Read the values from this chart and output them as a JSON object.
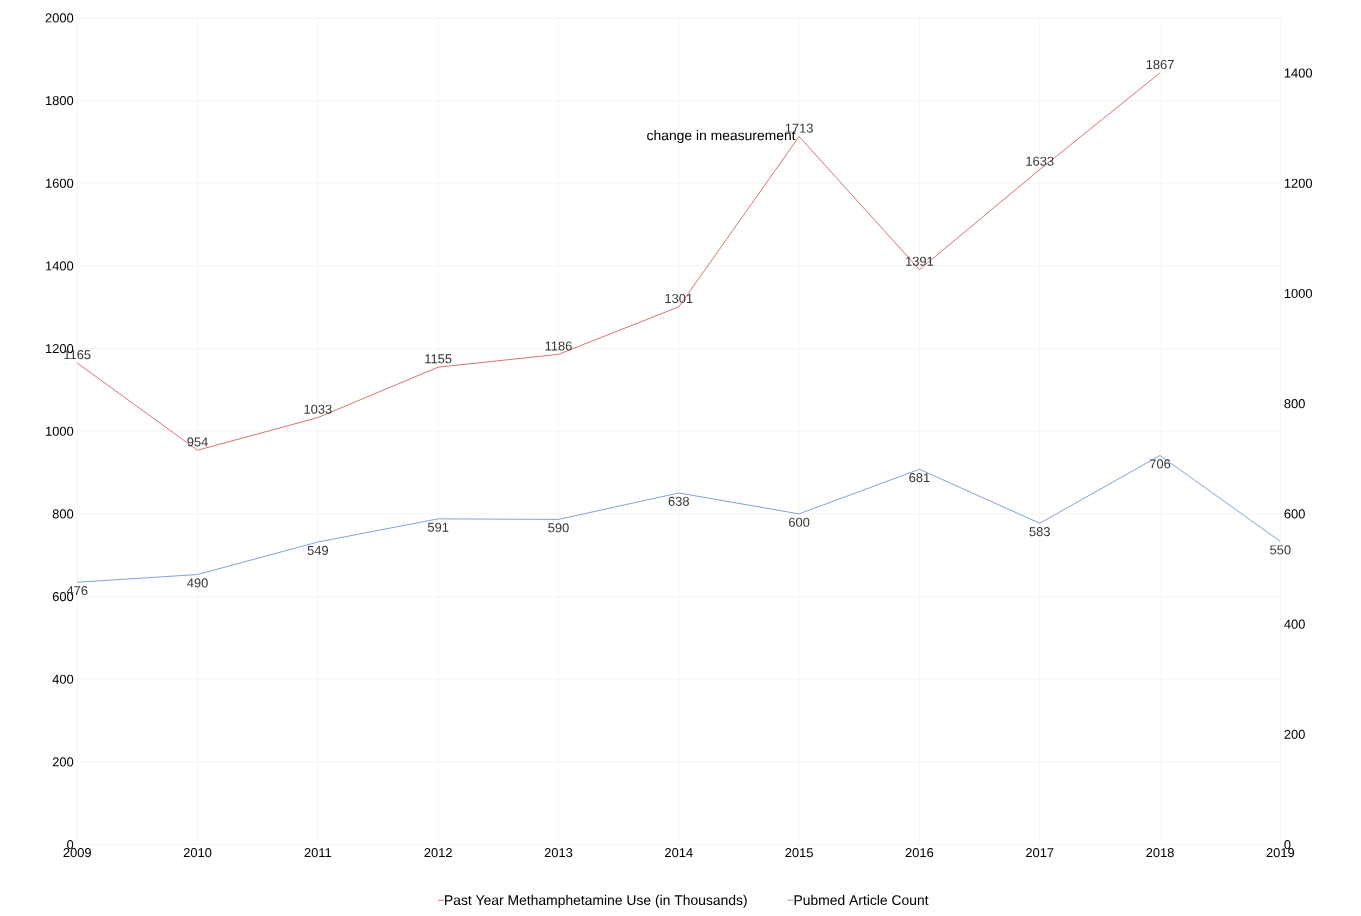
{
  "chart_data": {
    "type": "line",
    "x": [
      2009,
      2010,
      2011,
      2012,
      2013,
      2014,
      2015,
      2016,
      2017,
      2018,
      2019
    ],
    "series": [
      {
        "name": "Past Year Methamphetamine Use (in Thousands)",
        "color": "#d9736f",
        "values": [
          1165,
          954,
          1033,
          1155,
          1186,
          1301,
          1713,
          1391,
          1633,
          1867,
          null
        ]
      },
      {
        "name": "Pubmed Article Count",
        "color": "#7fa3d6",
        "axis": "y2",
        "values": [
          476,
          490,
          549,
          591,
          590,
          638,
          600,
          681,
          583,
          706,
          550
        ]
      }
    ],
    "xlim": [
      2009,
      2019
    ],
    "xticks": [
      2009,
      2010,
      2011,
      2012,
      2013,
      2014,
      2015,
      2016,
      2017,
      2018,
      2019
    ],
    "ylim": [
      0,
      2000
    ],
    "yticks": [
      0,
      200,
      400,
      600,
      800,
      1000,
      1200,
      1400,
      1600,
      1800,
      2000
    ],
    "y2lim": [
      0,
      1500
    ],
    "y2ticks": [
      0,
      200,
      400,
      600,
      800,
      1000,
      1200,
      1400
    ],
    "annotations": [
      {
        "text": "change in measurement",
        "x": 2015,
        "y": 1713
      }
    ],
    "data_labels": true,
    "grid": true,
    "legend": "bottom",
    "marker": "none",
    "line_style": "solid"
  }
}
